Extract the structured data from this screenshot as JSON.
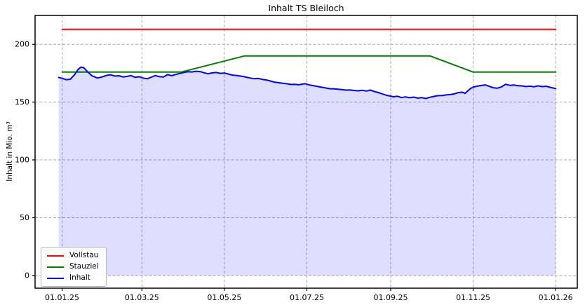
{
  "window": {
    "background": "#ffffff"
  },
  "chart_data": {
    "type": "line",
    "title": "Inhalt TS Bleiloch",
    "xlabel": "",
    "ylabel": "Inhalt in Mio. m³",
    "grid": true,
    "legend_position": "lower left",
    "x_unit": "days since 01.01.25",
    "xlim": [
      -20,
      381
    ],
    "ylim": [
      -11,
      225
    ],
    "y_ticks": [
      0,
      50,
      100,
      150,
      200
    ],
    "x_ticks": [
      {
        "day": 0,
        "label": "01.01.25"
      },
      {
        "day": 59,
        "label": "01.03.25"
      },
      {
        "day": 120,
        "label": "01.05.25"
      },
      {
        "day": 181,
        "label": "01.07.25"
      },
      {
        "day": 243,
        "label": "01.09.25"
      },
      {
        "day": 304,
        "label": "01.11.25"
      },
      {
        "day": 365,
        "label": "01.01.26"
      }
    ],
    "grid_color": "#aaaaaa",
    "series": [
      {
        "name": "Vollstau",
        "color": "#ff0000",
        "x": [
          0,
          365
        ],
        "values": [
          213,
          213
        ]
      },
      {
        "name": "Stauziel",
        "color": "#008000",
        "x": [
          0,
          88,
          135,
          272,
          304,
          365
        ],
        "values": [
          176,
          176,
          190,
          190,
          176,
          176
        ]
      },
      {
        "name": "Inhalt",
        "color": "#0000ff",
        "fill": "rgba(0,0,255,0.13)",
        "baseline": 0,
        "x": [
          -2.5,
          0,
          3,
          6,
          9,
          12,
          14,
          16,
          19,
          22,
          26,
          29,
          33,
          36,
          39,
          42,
          45,
          48,
          51,
          54,
          57,
          60,
          63,
          66,
          69,
          72,
          75,
          78,
          81,
          84,
          87,
          90,
          93,
          96,
          99,
          102,
          105,
          108,
          111,
          114,
          117,
          120,
          123,
          126,
          130,
          133,
          136,
          139,
          142,
          145,
          148,
          151,
          154,
          157,
          160,
          163,
          166,
          169,
          172,
          175,
          178,
          180,
          183,
          186,
          189,
          192,
          195,
          198,
          201,
          204,
          207,
          210,
          213,
          216,
          219,
          222,
          225,
          228,
          231,
          234,
          237,
          240,
          243,
          245,
          248,
          251,
          254,
          257,
          260,
          263,
          266,
          269,
          272,
          275,
          278,
          281,
          284,
          287,
          290,
          293,
          296,
          298,
          300,
          302,
          304,
          307,
          310,
          313,
          316,
          319,
          322,
          325,
          328,
          331,
          334,
          337,
          340,
          343,
          346,
          349,
          352,
          355,
          358,
          361,
          363,
          365
        ],
        "values": [
          171.3,
          170.6,
          169.4,
          169.8,
          173.5,
          178.5,
          180.3,
          179.8,
          176.0,
          172.8,
          170.9,
          171.6,
          173.2,
          173.6,
          172.6,
          172.8,
          171.8,
          172.2,
          173.0,
          171.4,
          172.0,
          170.8,
          170.2,
          171.6,
          173.0,
          172.0,
          171.8,
          173.8,
          172.9,
          173.9,
          174.8,
          175.6,
          176.3,
          176.1,
          176.7,
          176.4,
          175.4,
          174.5,
          175.3,
          175.6,
          174.9,
          175.2,
          174.3,
          173.4,
          172.9,
          172.4,
          171.6,
          170.9,
          170.3,
          170.5,
          169.7,
          169.2,
          168.3,
          167.3,
          166.8,
          166.3,
          165.9,
          165.3,
          165.4,
          165.0,
          165.6,
          165.9,
          164.8,
          164.3,
          163.5,
          162.9,
          162.2,
          161.6,
          161.4,
          161.2,
          160.9,
          160.4,
          160.6,
          160.1,
          159.8,
          160.2,
          159.6,
          160.4,
          159.2,
          158.2,
          157.0,
          155.9,
          155.2,
          154.6,
          155.1,
          153.9,
          154.5,
          153.8,
          154.3,
          153.5,
          153.9,
          153.1,
          154.2,
          154.9,
          155.6,
          155.7,
          156.2,
          156.5,
          157.1,
          158.2,
          158.6,
          157.6,
          159.8,
          161.7,
          163.0,
          163.8,
          164.4,
          164.9,
          163.6,
          162.4,
          162.1,
          163.2,
          165.4,
          164.5,
          164.8,
          164.3,
          164.0,
          163.5,
          163.8,
          163.3,
          164.0,
          163.4,
          163.7,
          162.8,
          162.2,
          161.8
        ]
      }
    ]
  }
}
